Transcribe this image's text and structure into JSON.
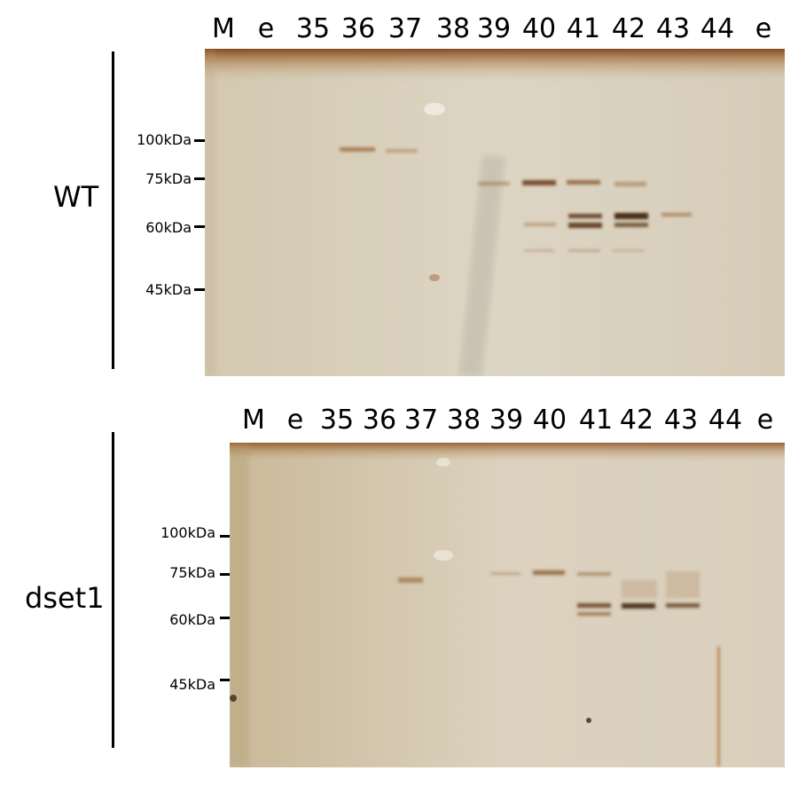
{
  "colors": {
    "gel_base": "#d8cfbd",
    "gel_light": "#e2dacb",
    "stain_top": "#8a4a1a",
    "band": "#8b5a2b",
    "band_dark": "#5a3414"
  },
  "panels": [
    {
      "sample": "WT",
      "lanes": [
        "M",
        "e",
        "35",
        "36",
        "37",
        "38",
        "39",
        "40",
        "41",
        "42",
        "43",
        "44",
        "e"
      ],
      "markers": [
        "100kDa",
        "75kDa",
        "60kDa",
        "45kDa"
      ]
    },
    {
      "sample": "dset1",
      "lanes": [
        "M",
        "e",
        "35",
        "36",
        "37",
        "38",
        "39",
        "40",
        "41",
        "42",
        "43",
        "44",
        "e"
      ],
      "markers": [
        "100kDa",
        "75kDa",
        "60kDa",
        "45kDa"
      ]
    }
  ]
}
